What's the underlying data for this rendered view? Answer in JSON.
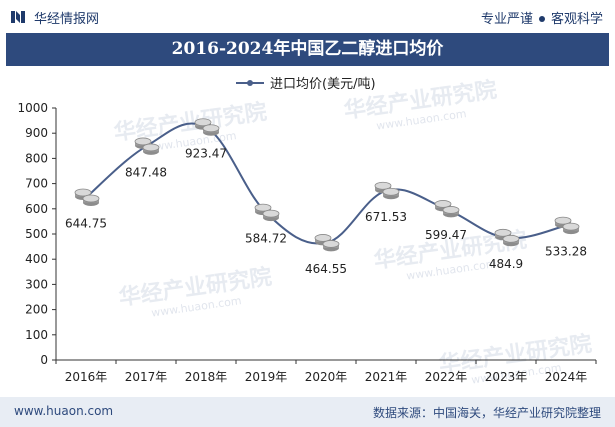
{
  "header": {
    "site_name": "华经情报网",
    "slogan_left": "专业严谨",
    "slogan_right": "客观科学"
  },
  "footer": {
    "url": "www.huaon.com",
    "source": "数据来源：中国海关，华经产业研究院整理"
  },
  "watermark": {
    "text": "华经产业研究院",
    "url": "www.huaon.com"
  },
  "colors": {
    "brand": "#2e4a7d",
    "line": "#4a5f8a"
  },
  "chart_data": {
    "type": "line",
    "title": "2016-2024年中国乙二醇进口均价",
    "xlabel": "",
    "ylabel": "",
    "categories": [
      "2016年",
      "2017年",
      "2018年",
      "2019年",
      "2020年",
      "2021年",
      "2022年",
      "2023年",
      "2024年"
    ],
    "series": [
      {
        "name": "进口均价(美元/吨)",
        "values": [
          644.75,
          847.48,
          923.47,
          584.72,
          464.55,
          671.53,
          599.47,
          484.9,
          533.28
        ],
        "labels": [
          "644.75",
          "847.48",
          "923.47",
          "584.72",
          "464.55",
          "671.53",
          "599.47",
          "484.9",
          "533.28"
        ]
      }
    ],
    "ylim": [
      0,
      1000
    ],
    "yticks": [
      0,
      100,
      200,
      300,
      400,
      500,
      600,
      700,
      800,
      900,
      1000
    ],
    "legend": "top-center",
    "grid": false
  }
}
